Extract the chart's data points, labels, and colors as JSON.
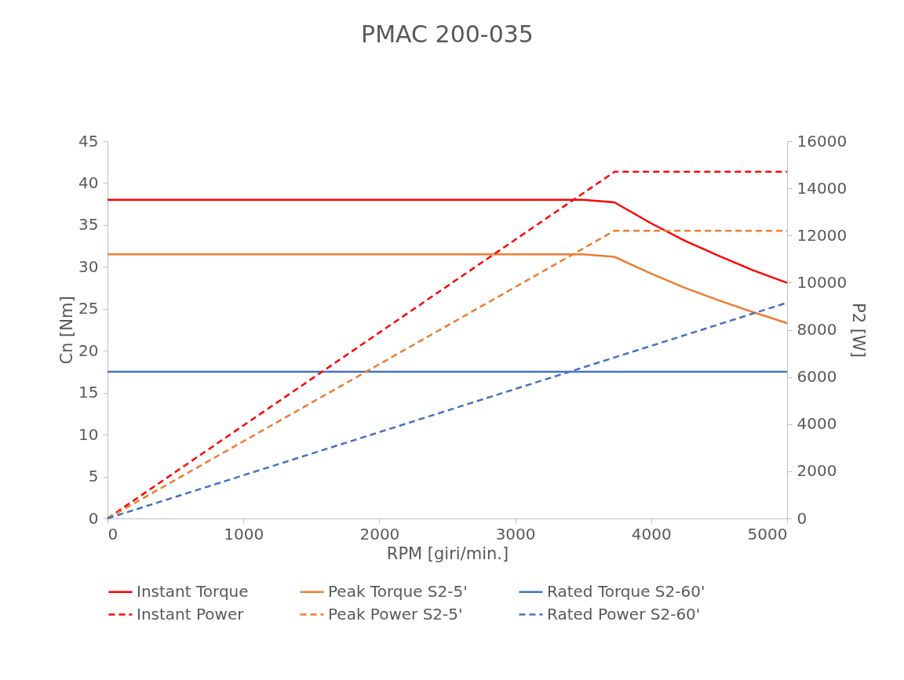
{
  "chart_data": {
    "type": "line",
    "title": "PMAC 200-035",
    "xlabel": "RPM [giri/min.]",
    "ylabel": "Cn [Nm]",
    "y2label": "P2 [W]",
    "xlim": [
      0,
      5000
    ],
    "xticks": [
      0,
      1000,
      2000,
      3000,
      4000,
      5000
    ],
    "ylim": [
      0,
      45
    ],
    "yticks": [
      0,
      5,
      10,
      15,
      20,
      25,
      30,
      35,
      40,
      45
    ],
    "y2lim": [
      0,
      16000
    ],
    "y2ticks": [
      0,
      2000,
      4000,
      6000,
      8000,
      10000,
      12000,
      14000,
      16000
    ],
    "legend": "bottom",
    "series": [
      {
        "name": "Instant Torque",
        "color": "#ff0000",
        "line_style": "solid",
        "x": [
          0,
          3500,
          3730,
          4000,
          4250,
          4500,
          4750,
          5000
        ],
        "values": [
          38,
          38,
          37.7,
          35.2,
          33.1,
          31.3,
          29.6,
          28.1
        ]
      },
      {
        "name": "Peak Torque S2-5'",
        "color": "#ed7d31",
        "line_style": "solid",
        "x": [
          0,
          3500,
          3730,
          4000,
          4250,
          4500,
          4750,
          5000
        ],
        "values": [
          31.5,
          31.5,
          31.2,
          29.2,
          27.5,
          26,
          24.6,
          23.3
        ]
      },
      {
        "name": "Rated Torque S2-60'",
        "color": "#4472c4",
        "line_style": "solid",
        "x": [
          0,
          5000
        ],
        "values": [
          17.5,
          17.5
        ]
      },
      {
        "name": "Instant Power",
        "color": "#ff0000",
        "line_style": "dashed",
        "axis": "y2",
        "x": [
          0,
          3730,
          5000
        ],
        "values": [
          0,
          14700,
          14700
        ]
      },
      {
        "name": "Peak Power S2-5'",
        "color": "#ed7d31",
        "line_style": "dashed",
        "axis": "y2",
        "x": [
          0,
          3730,
          5000
        ],
        "values": [
          0,
          12200,
          12200
        ]
      },
      {
        "name": "Rated Power S2-60'",
        "color": "#4472c4",
        "line_style": "dashed",
        "axis": "y2",
        "x": [
          0,
          5000
        ],
        "values": [
          0,
          9150
        ]
      }
    ]
  }
}
